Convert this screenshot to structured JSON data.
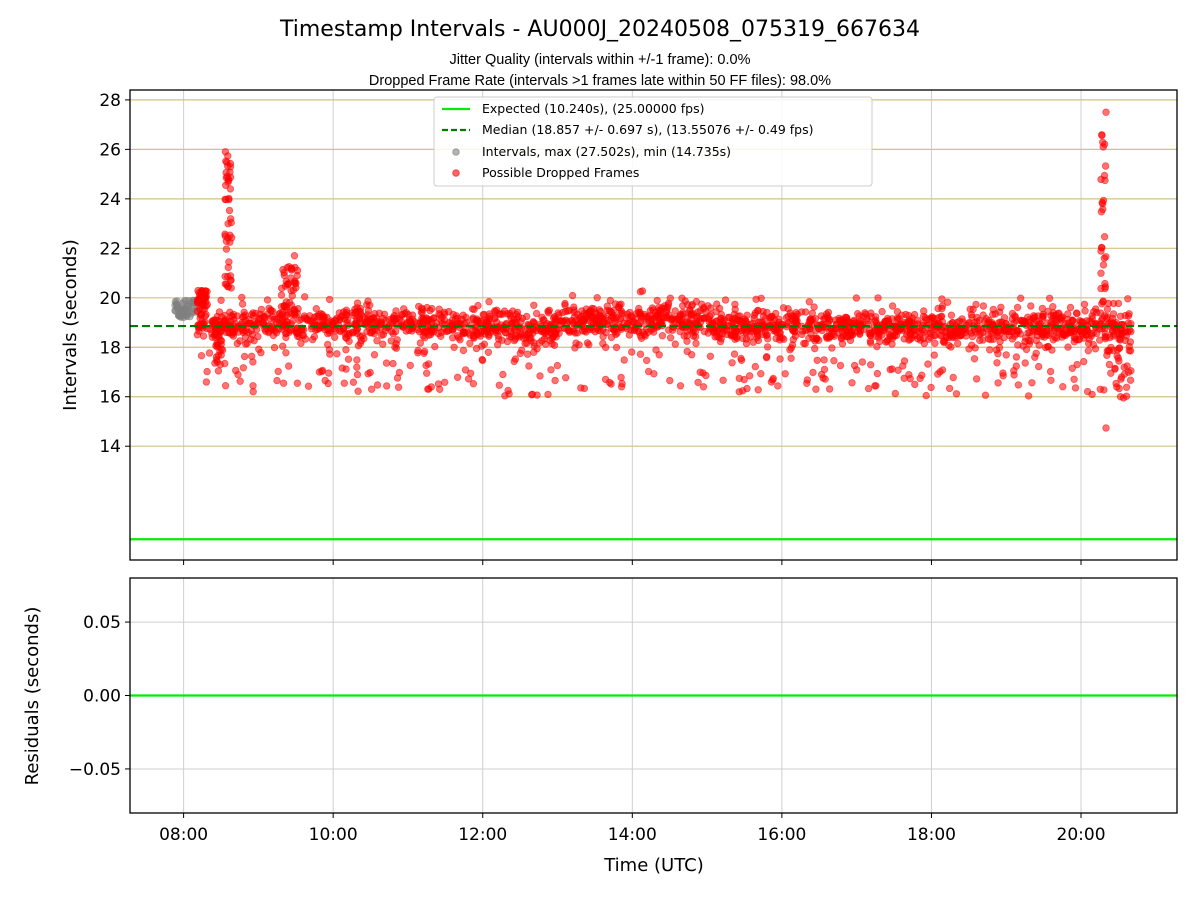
{
  "chart_data": [
    {
      "type": "scatter",
      "title": "Timestamp Intervals - AU000J_20240508_075319_667634",
      "subtitle_lines": [
        "Jitter Quality (intervals within +/-1 frame): 0.0%",
        "Dropped Frame Rate (intervals >1 frames late within 50 FF files): 98.0%"
      ],
      "xlabel": "",
      "ylabel": "Intervals (seconds)",
      "xlim": [
        "07:17",
        "21:17"
      ],
      "ylim": [
        9.4,
        28.4
      ],
      "yticks": [
        14,
        16,
        18,
        20,
        22,
        24,
        26,
        28
      ],
      "ytick_labels": [
        "14",
        "16",
        "18",
        "20",
        "22",
        "24",
        "26",
        "28"
      ],
      "hlines": [
        {
          "name": "Expected (10.240s), (25.00000 fps)",
          "value": 10.24,
          "color": "#00ee00",
          "style": "solid"
        },
        {
          "name": "Median (18.857 +/- 0.697 s), (13.55076 +/- 0.49 fps)",
          "value": 18.857,
          "color": "#007a00",
          "style": "dashed"
        }
      ],
      "series": [
        {
          "name": "Intervals, max (27.502s), min (14.735s)",
          "color": "#808080",
          "marker": "o",
          "time_range": [
            "07:53",
            "08:11"
          ],
          "band": [
            19.2,
            19.9
          ]
        },
        {
          "name": "Possible Dropped Frames",
          "color": "#ff0000",
          "marker": "o",
          "time_range": [
            "08:11",
            "20:40"
          ],
          "typical_band": [
            17.0,
            19.8
          ],
          "max": 27.502,
          "min": 14.735
        }
      ],
      "legend_position": "upper center",
      "grid": {
        "x": true,
        "y": true,
        "y_color": "#d3c284"
      }
    },
    {
      "type": "line",
      "xlabel": "Time (UTC)",
      "ylabel": "Residuals (seconds)",
      "xlim": [
        "07:17",
        "21:17"
      ],
      "ylim": [
        -0.08,
        0.08
      ],
      "yticks": [
        -0.05,
        0.0,
        0.05
      ],
      "ytick_labels": [
        "−0.05",
        "0.00",
        "0.05"
      ],
      "xticks": [
        "08:00",
        "10:00",
        "12:00",
        "14:00",
        "16:00",
        "18:00",
        "20:00"
      ],
      "series": [
        {
          "name": "Residuals",
          "color": "#00ee00",
          "constant_value": 0.0
        }
      ],
      "grid": true
    }
  ],
  "colors": {
    "expected": "#00ee00",
    "median": "#007a00",
    "intervals": "#808080",
    "dropped": "#ff0000",
    "y_grid_top": "#d3c284",
    "grid": "#cfcfcf"
  }
}
